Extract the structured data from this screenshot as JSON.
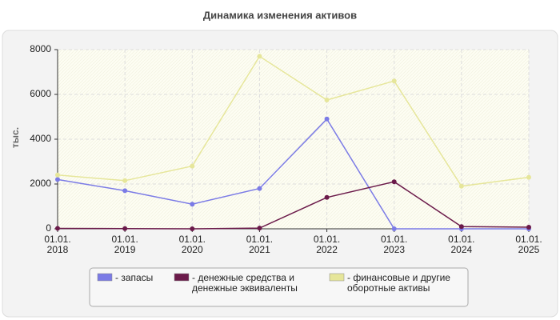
{
  "chart_data": {
    "type": "line",
    "title": "Динамика изменения активов",
    "ylabel": "тыс.",
    "categories": [
      "01.01.\n2018",
      "01.01.\n2019",
      "01.01.\n2020",
      "01.01.\n2021",
      "01.01.\n2022",
      "01.01.\n2023",
      "01.01.\n2024",
      "01.01.\n2025"
    ],
    "series": [
      {
        "name": "- запасы",
        "color": "#7b7be6",
        "values": [
          2200,
          1700,
          1100,
          1800,
          4900,
          0,
          0,
          0
        ]
      },
      {
        "name": "- денежные средства и\nденежные эквиваленты",
        "color": "#6b1a4a",
        "values": [
          20,
          10,
          0,
          30,
          1400,
          2100,
          100,
          70
        ]
      },
      {
        "name": "- финансовые и другие\nоборотные активы",
        "color": "#e6e69a",
        "values": [
          2400,
          2150,
          2800,
          7700,
          5750,
          6600,
          1900,
          2300
        ]
      }
    ],
    "ylim": [
      0,
      8000
    ],
    "yticks": [
      0,
      2000,
      4000,
      6000,
      8000
    ],
    "grid": true
  }
}
